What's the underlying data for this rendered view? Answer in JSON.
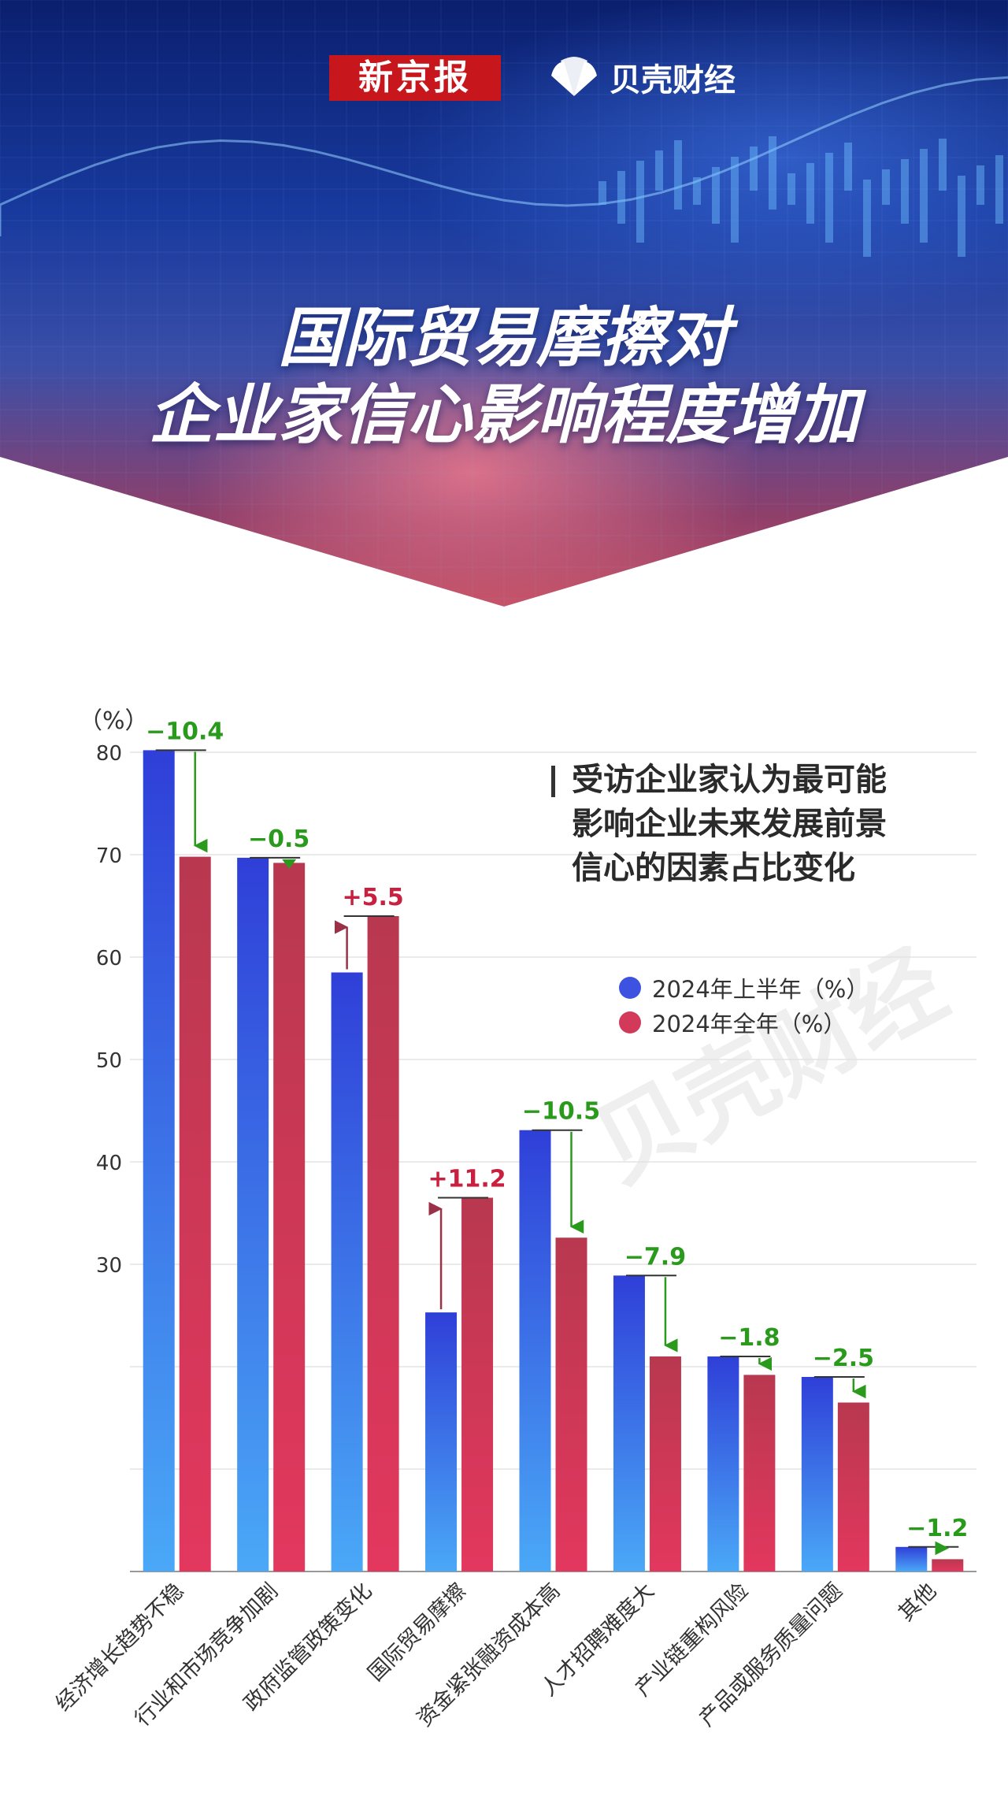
{
  "header": {
    "brand_primary": "新京报",
    "brand_secondary": "贝壳财经",
    "title_line1": "国际贸易摩擦对",
    "title_line2": "企业家信心影响程度增加",
    "colors": {
      "brand_red": "#c8161d"
    }
  },
  "caption_lines": [
    "受访企业家认为最可能",
    "影响企业未来发展前景",
    "信心的因素占比变化"
  ],
  "watermark": "贝壳财经",
  "chart_data": {
    "type": "bar",
    "unit": "（%）",
    "ylim": [
      0,
      80
    ],
    "yticks": [
      30,
      40,
      50,
      60,
      70,
      80
    ],
    "grid": true,
    "legend_position": "top-right",
    "categories": [
      "经济增长趋势不稳",
      "行业和市场竞争加剧",
      "政府监管政策变化",
      "国际贸易摩擦",
      "资金紧张融资成本高",
      "人才招聘难度大",
      "产业链重构风险",
      "产品或服务质量问题",
      "其他"
    ],
    "series": [
      {
        "name": "2024年上半年（%）",
        "color": "#3d52e0",
        "values": [
          80.2,
          69.7,
          58.5,
          25.3,
          43.1,
          28.9,
          21.0,
          19.0,
          2.4
        ]
      },
      {
        "name": "2024年全年（%）",
        "color": "#d33a5a",
        "values": [
          69.8,
          69.2,
          64.0,
          36.5,
          32.6,
          21.0,
          19.2,
          16.5,
          1.2
        ]
      }
    ],
    "changes": [
      "−10.4",
      "−0.5",
      "+5.5",
      "+11.2",
      "−10.5",
      "−7.9",
      "−1.8",
      "−2.5",
      "−1.2"
    ],
    "colors": {
      "decrease": "#2a9a1c",
      "increase": "#c8203e",
      "arrow_increase": "#9b3147"
    }
  }
}
